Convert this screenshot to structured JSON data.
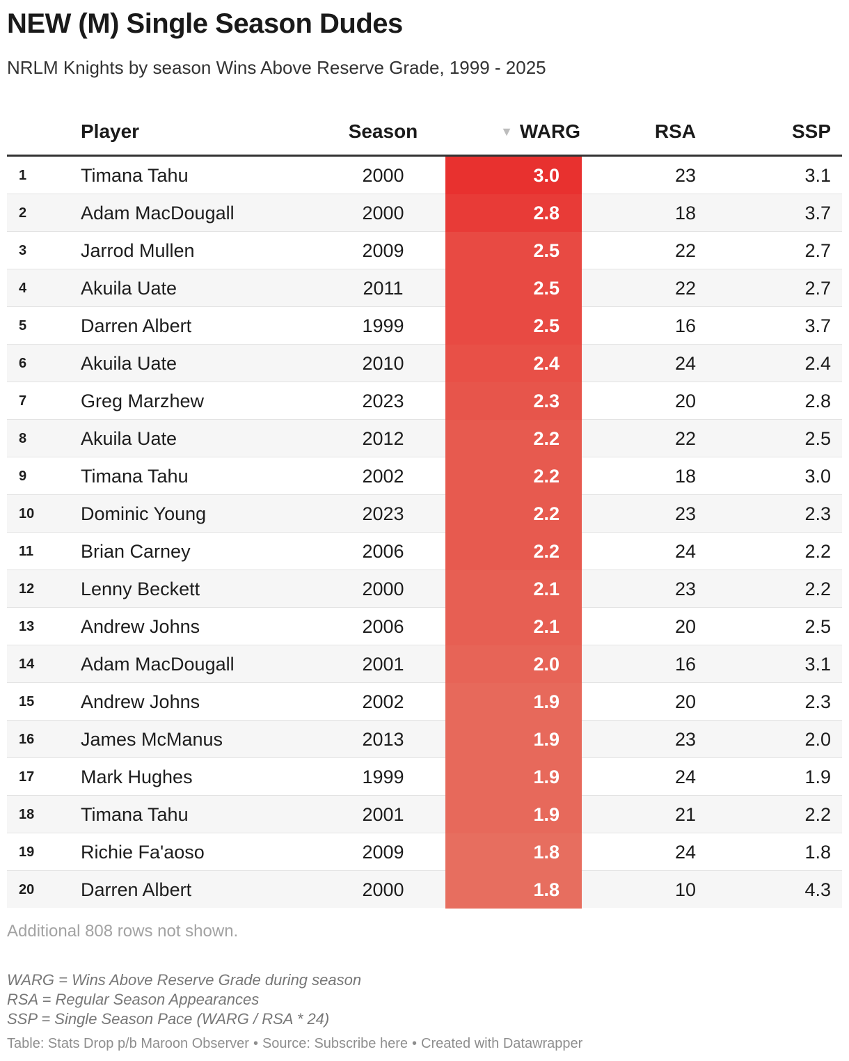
{
  "title": "NEW (M) Single Season Dudes",
  "subtitle": "NRLM Knights by season Wins Above Reserve Grade, 1999 - 2025",
  "headers": {
    "rank": "",
    "player": "Player",
    "season": "Season",
    "warg": "WARG",
    "rsa": "RSA",
    "ssp": "SSP"
  },
  "sort_indicator": "▼",
  "colors": {
    "warg_max": "#e8312f",
    "warg_min": "#e76e5f",
    "stripe": "#f6f6f6",
    "header_rule": "#333333"
  },
  "more_rows": "Additional 808 rows not shown.",
  "notes": [
    "WARG = Wins Above Reserve Grade during season",
    "RSA = Regular Season Appearances",
    "SSP = Single Season Pace (WARG / RSA * 24)"
  ],
  "footer": {
    "table_credit": "Table: Stats Drop p/b Maroon Observer",
    "source": "Source: Subscribe here",
    "created": "Created with Datawrapper"
  },
  "chart_data": {
    "type": "table",
    "title": "NEW (M) Single Season Dudes",
    "subtitle": "NRLM Knights by season Wins Above Reserve Grade, 1999 - 2025",
    "columns": [
      "",
      "Player",
      "Season",
      "WARG",
      "RSA",
      "SSP"
    ],
    "sorted_by": "WARG",
    "sort_order": "descending",
    "rows": [
      {
        "rank": "1",
        "player": "Timana Tahu",
        "season": "2000",
        "warg": "3.0",
        "rsa": "23",
        "ssp": "3.1"
      },
      {
        "rank": "2",
        "player": "Adam MacDougall",
        "season": "2000",
        "warg": "2.8",
        "rsa": "18",
        "ssp": "3.7"
      },
      {
        "rank": "3",
        "player": "Jarrod Mullen",
        "season": "2009",
        "warg": "2.5",
        "rsa": "22",
        "ssp": "2.7"
      },
      {
        "rank": "4",
        "player": "Akuila Uate",
        "season": "2011",
        "warg": "2.5",
        "rsa": "22",
        "ssp": "2.7"
      },
      {
        "rank": "5",
        "player": "Darren Albert",
        "season": "1999",
        "warg": "2.5",
        "rsa": "16",
        "ssp": "3.7"
      },
      {
        "rank": "6",
        "player": "Akuila Uate",
        "season": "2010",
        "warg": "2.4",
        "rsa": "24",
        "ssp": "2.4"
      },
      {
        "rank": "7",
        "player": "Greg Marzhew",
        "season": "2023",
        "warg": "2.3",
        "rsa": "20",
        "ssp": "2.8"
      },
      {
        "rank": "8",
        "player": "Akuila Uate",
        "season": "2012",
        "warg": "2.2",
        "rsa": "22",
        "ssp": "2.5"
      },
      {
        "rank": "9",
        "player": "Timana Tahu",
        "season": "2002",
        "warg": "2.2",
        "rsa": "18",
        "ssp": "3.0"
      },
      {
        "rank": "10",
        "player": "Dominic Young",
        "season": "2023",
        "warg": "2.2",
        "rsa": "23",
        "ssp": "2.3"
      },
      {
        "rank": "11",
        "player": "Brian Carney",
        "season": "2006",
        "warg": "2.2",
        "rsa": "24",
        "ssp": "2.2"
      },
      {
        "rank": "12",
        "player": "Lenny Beckett",
        "season": "2000",
        "warg": "2.1",
        "rsa": "23",
        "ssp": "2.2"
      },
      {
        "rank": "13",
        "player": "Andrew Johns",
        "season": "2006",
        "warg": "2.1",
        "rsa": "20",
        "ssp": "2.5"
      },
      {
        "rank": "14",
        "player": "Adam MacDougall",
        "season": "2001",
        "warg": "2.0",
        "rsa": "16",
        "ssp": "3.1"
      },
      {
        "rank": "15",
        "player": "Andrew Johns",
        "season": "2002",
        "warg": "1.9",
        "rsa": "20",
        "ssp": "2.3"
      },
      {
        "rank": "16",
        "player": "James McManus",
        "season": "2013",
        "warg": "1.9",
        "rsa": "23",
        "ssp": "2.0"
      },
      {
        "rank": "17",
        "player": "Mark Hughes",
        "season": "1999",
        "warg": "1.9",
        "rsa": "24",
        "ssp": "1.9"
      },
      {
        "rank": "18",
        "player": "Timana Tahu",
        "season": "2001",
        "warg": "1.9",
        "rsa": "21",
        "ssp": "2.2"
      },
      {
        "rank": "19",
        "player": "Richie Fa'aoso",
        "season": "2009",
        "warg": "1.8",
        "rsa": "24",
        "ssp": "1.8"
      },
      {
        "rank": "20",
        "player": "Darren Albert",
        "season": "2000",
        "warg": "1.8",
        "rsa": "10",
        "ssp": "4.3"
      }
    ]
  }
}
